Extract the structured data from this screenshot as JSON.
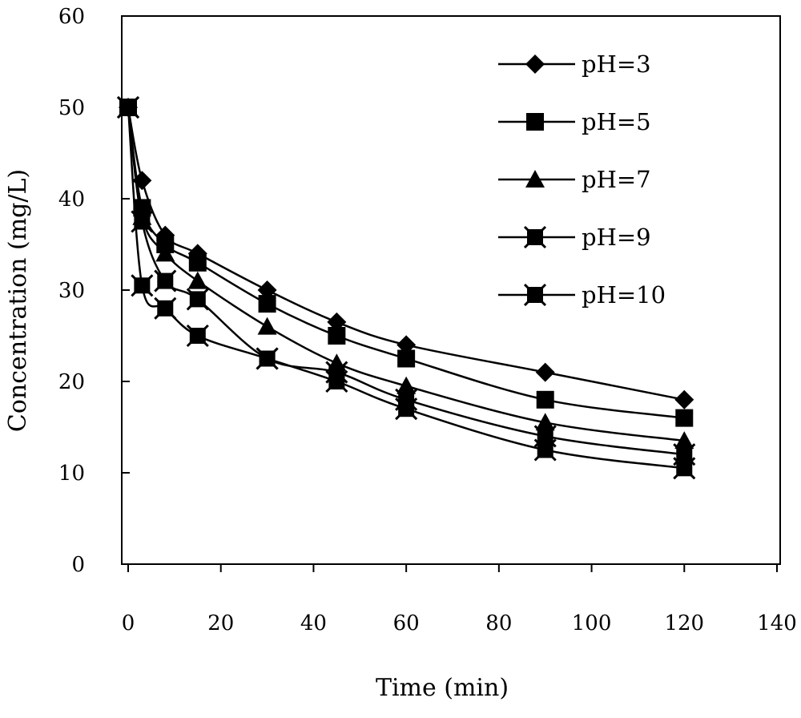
{
  "chart_data": {
    "type": "line",
    "title": "",
    "xlabel": "Time (min)",
    "ylabel": "Concentration (mg/L)",
    "xlim": [
      0,
      140
    ],
    "ylim": [
      0,
      60
    ],
    "xticks": [
      "0",
      "20",
      "40",
      "60",
      "80",
      "100",
      "120",
      "140"
    ],
    "yticks": [
      "0",
      "10",
      "20",
      "30",
      "40",
      "50",
      "60"
    ],
    "grid": false,
    "legend_position": "top-right",
    "x": [
      0,
      3,
      8,
      15,
      30,
      45,
      60,
      90,
      120
    ],
    "series": [
      {
        "name": "pH=3",
        "marker": "diamond",
        "values": [
          50,
          42,
          36,
          34,
          30,
          26.5,
          24,
          21,
          18
        ]
      },
      {
        "name": "pH=5",
        "marker": "square",
        "values": [
          50,
          39,
          35,
          33,
          28.5,
          25,
          22.5,
          18,
          16
        ]
      },
      {
        "name": "pH=7",
        "marker": "triangle",
        "values": [
          50,
          38,
          34,
          31,
          26,
          22,
          19.5,
          15.5,
          13.5
        ]
      },
      {
        "name": "pH=9",
        "marker": "square-x",
        "values": [
          50,
          37.5,
          31,
          29,
          22.5,
          21,
          18,
          14,
          12
        ]
      },
      {
        "name": "pH=10",
        "marker": "square-x",
        "values": [
          50,
          30.5,
          28,
          25,
          22.5,
          20,
          17,
          12.5,
          10.5
        ]
      }
    ]
  }
}
